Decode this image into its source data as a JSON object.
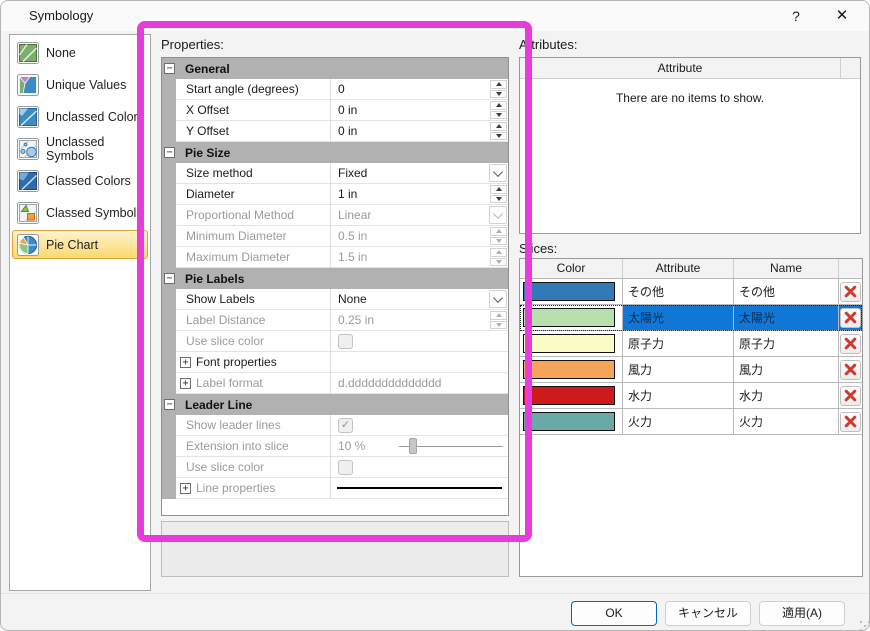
{
  "window": {
    "title": "Symbology",
    "help": "?",
    "close": "✕"
  },
  "sidebar": {
    "items": [
      {
        "label": "None",
        "icon": "symbology-none-icon",
        "selected": false
      },
      {
        "label": "Unique Values",
        "icon": "unique-values-icon",
        "selected": false
      },
      {
        "label": "Unclassed Colors",
        "icon": "unclassed-colors-icon",
        "selected": false
      },
      {
        "label": "Unclassed Symbols",
        "icon": "unclassed-symbols-icon",
        "selected": false
      },
      {
        "label": "Classed Colors",
        "icon": "classed-colors-icon",
        "selected": false
      },
      {
        "label": "Classed Symbols",
        "icon": "classed-symbols-icon",
        "selected": false
      },
      {
        "label": "Pie Chart",
        "icon": "pie-chart-icon",
        "selected": true
      }
    ]
  },
  "properties": {
    "label": "Properties:",
    "collapse_glyph": "−",
    "expand_glyph": "+",
    "sections": [
      {
        "title": "General",
        "rows": [
          {
            "label": "Start angle (degrees)",
            "value": "0",
            "control": "spinner",
            "disabled": false
          },
          {
            "label": "X Offset",
            "value": "0 in",
            "control": "spinner",
            "disabled": false
          },
          {
            "label": "Y Offset",
            "value": "0 in",
            "control": "spinner",
            "disabled": false
          }
        ]
      },
      {
        "title": "Pie Size",
        "rows": [
          {
            "label": "Size method",
            "value": "Fixed",
            "control": "dropdown",
            "disabled": false
          },
          {
            "label": "Diameter",
            "value": "1 in",
            "control": "spinner",
            "disabled": false
          },
          {
            "label": "Proportional Method",
            "value": "Linear",
            "control": "dropdown",
            "disabled": true
          },
          {
            "label": "Minimum Diameter",
            "value": "0.5 in",
            "control": "spinner",
            "disabled": true
          },
          {
            "label": "Maximum Diameter",
            "value": "1.5 in",
            "control": "spinner",
            "disabled": true
          }
        ]
      },
      {
        "title": "Pie Labels",
        "rows": [
          {
            "label": "Show Labels",
            "value": "None",
            "control": "dropdown",
            "disabled": false
          },
          {
            "label": "Label Distance",
            "value": "0.25 in",
            "control": "spinner",
            "disabled": true
          },
          {
            "label": "Use slice color",
            "control": "checkbox",
            "checked": false,
            "disabled": true
          },
          {
            "label": "Font properties",
            "control": "none",
            "expand": true,
            "disabled": false
          },
          {
            "label": "Label format",
            "value": "d.dddddddddddddd",
            "control": "text",
            "expand": true,
            "disabled": true
          }
        ]
      },
      {
        "title": "Leader Line",
        "rows": [
          {
            "label": "Show leader lines",
            "control": "checkbox",
            "checked": true,
            "disabled": true
          },
          {
            "label": "Extension into slice",
            "value": "10 %",
            "control": "slider",
            "slider_percent": 10,
            "disabled": true
          },
          {
            "label": "Use slice color",
            "control": "checkbox",
            "checked": false,
            "disabled": true
          },
          {
            "label": "Line properties",
            "control": "line-sample",
            "expand": true,
            "disabled": true
          }
        ]
      }
    ]
  },
  "attributes": {
    "label": "Attributes:",
    "column_header": "Attribute",
    "empty_text": "There are no items to show."
  },
  "slices": {
    "label": "Slices:",
    "columns": [
      "Color",
      "Attribute",
      "Name"
    ],
    "rows": [
      {
        "color": "#3279b7",
        "attribute": "その他",
        "name": "その他",
        "selected": false
      },
      {
        "color": "#b7dfb0",
        "attribute": "太陽光",
        "name": "太陽光",
        "selected": true
      },
      {
        "color": "#fbfbc4",
        "attribute": "原子力",
        "name": "原子力",
        "selected": false
      },
      {
        "color": "#f4a55b",
        "attribute": "風力",
        "name": "風力",
        "selected": false
      },
      {
        "color": "#cd1b1d",
        "attribute": "水力",
        "name": "水力",
        "selected": false
      },
      {
        "color": "#6aa9a7",
        "attribute": "火力",
        "name": "火力",
        "selected": false
      }
    ]
  },
  "footer": {
    "ok": "OK",
    "cancel": "キャンセル",
    "apply": "適用(A)"
  },
  "annotation": {
    "color": "#e83bdc"
  },
  "colors": {
    "selection_blue": "#1177d7",
    "section_header_gray": "#b1b1b1",
    "sidebar_selected_gold": "#fbd96e",
    "delete_x_red": "#d23a2e"
  },
  "checkbox": {
    "checked_glyph": "✓"
  }
}
